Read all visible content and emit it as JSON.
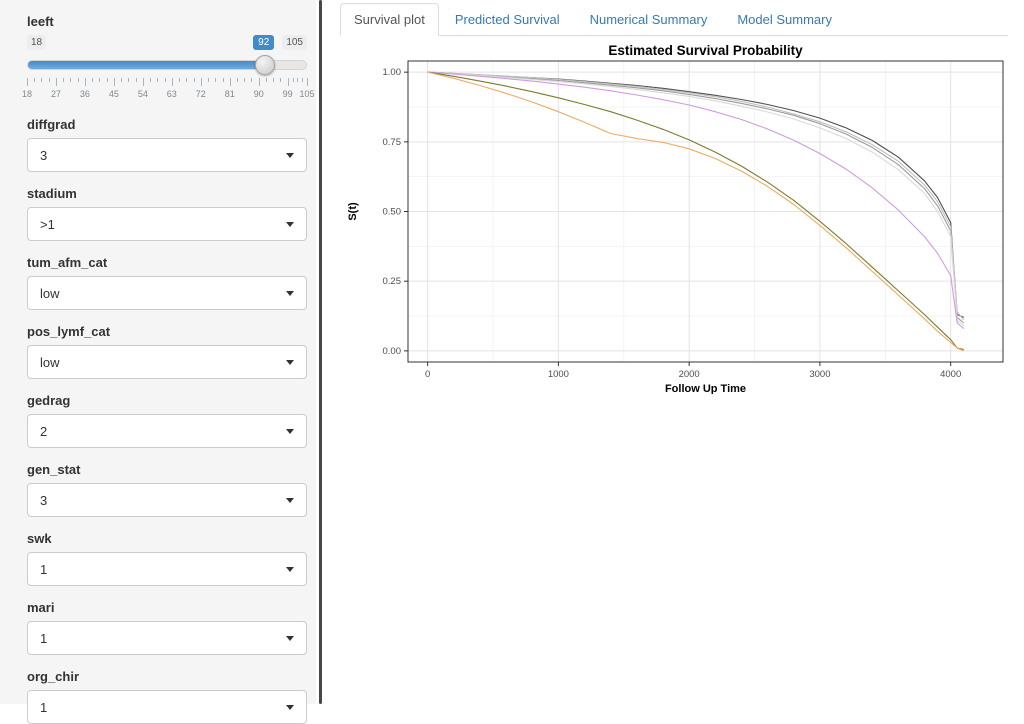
{
  "sidebar": {
    "slider": {
      "label": "leeft",
      "min": 18,
      "max": 105,
      "value": 92,
      "min_label": "18",
      "max_label": "105",
      "value_label": "92",
      "ticks": [
        18,
        27,
        36,
        45,
        54,
        63,
        72,
        81,
        90,
        99,
        105
      ]
    },
    "selects": [
      {
        "label": "diffgrad",
        "value": "3"
      },
      {
        "label": "stadium",
        "value": ">1"
      },
      {
        "label": "tum_afm_cat",
        "value": "low"
      },
      {
        "label": "pos_lymf_cat",
        "value": "low"
      },
      {
        "label": "gedrag",
        "value": "2"
      },
      {
        "label": "gen_stat",
        "value": "3"
      },
      {
        "label": "swk",
        "value": "1"
      },
      {
        "label": "mari",
        "value": "1"
      },
      {
        "label": "org_chir",
        "value": "1"
      }
    ]
  },
  "tabs": [
    {
      "label": "Survival plot",
      "active": true
    },
    {
      "label": "Predicted Survival",
      "active": false
    },
    {
      "label": "Numerical Summary",
      "active": false
    },
    {
      "label": "Model Summary",
      "active": false
    }
  ],
  "colors": {
    "accent_blue": "#428bca",
    "link_blue": "#337ab7",
    "sidebar_bg": "#f5f5f5",
    "panel_border": "#333333",
    "grid_major": "#e3e3e3",
    "grid_minor": "#f0f0f0"
  },
  "chart_data": {
    "type": "line",
    "title": "Estimated Survival Probability",
    "xlabel": "Follow Up Time",
    "ylabel": "S(t)",
    "xlim": [
      -150,
      4400
    ],
    "ylim": [
      -0.04,
      1.04
    ],
    "x_ticks": [
      0,
      1000,
      2000,
      3000,
      4000
    ],
    "x_tick_labels": [
      "0",
      "1000",
      "2000",
      "3000",
      "4000"
    ],
    "y_ticks": [
      0.0,
      0.25,
      0.5,
      0.75,
      1.0
    ],
    "y_tick_labels": [
      "0.00",
      "0.25",
      "0.50",
      "0.75",
      "1.00"
    ],
    "grid": true,
    "legend": "none",
    "x": [
      0,
      200,
      400,
      600,
      800,
      1000,
      1200,
      1400,
      1600,
      1800,
      2000,
      2200,
      2400,
      2600,
      2800,
      3000,
      3200,
      3400,
      3600,
      3800,
      3900,
      4000,
      4050,
      4100
    ],
    "series": [
      {
        "name": "survival-dark-gray",
        "color": "#4f4f4f",
        "values": [
          1.0,
          0.995,
          0.99,
          0.985,
          0.98,
          0.975,
          0.968,
          0.96,
          0.952,
          0.942,
          0.93,
          0.917,
          0.902,
          0.884,
          0.862,
          0.835,
          0.8,
          0.755,
          0.695,
          0.61,
          0.55,
          0.46,
          0.13,
          0.12
        ]
      },
      {
        "name": "survival-gray",
        "color": "#9b9b9b",
        "values": [
          1.0,
          0.995,
          0.989,
          0.983,
          0.977,
          0.97,
          0.962,
          0.953,
          0.944,
          0.933,
          0.92,
          0.905,
          0.888,
          0.868,
          0.845,
          0.815,
          0.778,
          0.73,
          0.668,
          0.582,
          0.52,
          0.43,
          0.12,
          0.1
        ]
      },
      {
        "name": "survival-light-gray",
        "color": "#bfbfbf",
        "values": [
          1.0,
          0.996,
          0.991,
          0.986,
          0.98,
          0.974,
          0.966,
          0.958,
          0.949,
          0.938,
          0.926,
          0.912,
          0.895,
          0.875,
          0.85,
          0.822,
          0.786,
          0.74,
          0.68,
          0.595,
          0.535,
          0.445,
          0.14,
          0.11
        ]
      },
      {
        "name": "survival-lighter-gray",
        "color": "#d9d9d9",
        "values": [
          1.0,
          0.994,
          0.988,
          0.981,
          0.974,
          0.966,
          0.958,
          0.948,
          0.938,
          0.926,
          0.913,
          0.897,
          0.878,
          0.857,
          0.832,
          0.8,
          0.762,
          0.713,
          0.65,
          0.565,
          0.5,
          0.41,
          0.11,
          0.09
        ]
      },
      {
        "name": "survival-violet",
        "color": "#cf9be0",
        "values": [
          1.0,
          0.993,
          0.985,
          0.977,
          0.968,
          0.957,
          0.946,
          0.933,
          0.918,
          0.901,
          0.882,
          0.858,
          0.83,
          0.796,
          0.756,
          0.708,
          0.652,
          0.585,
          0.505,
          0.41,
          0.35,
          0.27,
          0.1,
          0.08
        ]
      },
      {
        "name": "survival-olive",
        "color": "#7b7b2e",
        "values": [
          1.0,
          0.985,
          0.968,
          0.95,
          0.93,
          0.908,
          0.884,
          0.858,
          0.828,
          0.795,
          0.757,
          0.713,
          0.663,
          0.605,
          0.54,
          0.465,
          0.385,
          0.3,
          0.215,
          0.13,
          0.085,
          0.04,
          0.01,
          0.005
        ]
      },
      {
        "name": "survival-orange",
        "color": "#edaa63",
        "values": [
          1.0,
          0.978,
          0.952,
          0.924,
          0.893,
          0.858,
          0.82,
          0.78,
          0.762,
          0.748,
          0.725,
          0.69,
          0.645,
          0.59,
          0.525,
          0.45,
          0.37,
          0.285,
          0.2,
          0.115,
          0.07,
          0.03,
          0.01,
          0.0
        ]
      }
    ]
  }
}
